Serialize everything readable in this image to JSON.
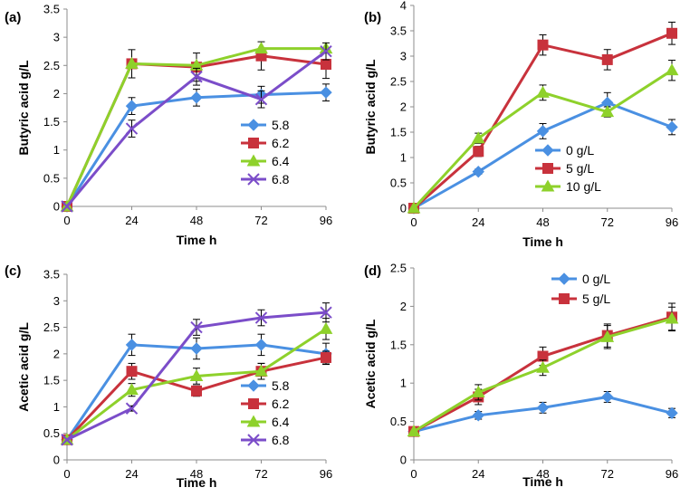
{
  "colors": {
    "blue": "#4A90E2",
    "red": "#C8323C",
    "green": "#8ED12B",
    "purple": "#7B4DC9",
    "axis": "#8c8c8c",
    "error": "#000000"
  },
  "chart_data": [
    {
      "panel": "(a)",
      "type": "line",
      "x": [
        0,
        24,
        48,
        72,
        96
      ],
      "xticks": [
        "0",
        "24",
        "48",
        "72",
        "96"
      ],
      "ylim": [
        0,
        3.5
      ],
      "yticks": [
        "0",
        "0.5",
        "1",
        "1.5",
        "2",
        "2.5",
        "3",
        "3.5"
      ],
      "xlabel": "Time h",
      "ylabel": "Butyric acid g/L",
      "legend_position": "bottom-right",
      "series": [
        {
          "name": "5.8",
          "marker": "diamond",
          "color": "blue",
          "values": [
            0,
            1.78,
            1.93,
            1.98,
            2.02
          ],
          "errors": [
            0,
            0.15,
            0.15,
            0.15,
            0.15
          ]
        },
        {
          "name": "6.2",
          "marker": "square",
          "color": "red",
          "values": [
            0,
            2.53,
            2.47,
            2.67,
            2.52
          ],
          "errors": [
            0,
            0.25,
            0.25,
            0.25,
            0.25
          ]
        },
        {
          "name": "6.4",
          "marker": "triangle",
          "color": "green",
          "values": [
            0,
            2.53,
            2.5,
            2.8,
            2.8
          ],
          "errors": [
            0,
            0.0,
            0.0,
            0.0,
            0.0
          ]
        },
        {
          "name": "6.8",
          "marker": "x",
          "color": "purple",
          "values": [
            0,
            1.38,
            2.3,
            1.9,
            2.75
          ],
          "errors": [
            0,
            0.15,
            0.15,
            0.15,
            0.15
          ]
        }
      ]
    },
    {
      "panel": "(b)",
      "type": "line",
      "x": [
        0,
        24,
        48,
        72,
        96
      ],
      "xticks": [
        "0",
        "24",
        "48",
        "72",
        "96"
      ],
      "ylim": [
        0,
        4
      ],
      "yticks": [
        "0",
        "0.5",
        "1",
        "1.5",
        "2",
        "2.5",
        "3",
        "3.5",
        "4"
      ],
      "xlabel": "Time h",
      "ylabel": "Butyric acid g/L",
      "legend_position": "bottom-right",
      "series": [
        {
          "name": "0 g/L",
          "marker": "diamond",
          "color": "blue",
          "values": [
            0,
            0.72,
            1.52,
            2.08,
            1.6
          ],
          "errors": [
            0,
            0.05,
            0.15,
            0.2,
            0.15
          ]
        },
        {
          "name": "5 g/L",
          "marker": "square",
          "color": "red",
          "values": [
            0,
            1.12,
            3.22,
            2.93,
            3.45
          ],
          "errors": [
            0,
            0.1,
            0.2,
            0.2,
            0.22
          ]
        },
        {
          "name": "10 g/L",
          "marker": "triangle",
          "color": "green",
          "values": [
            0,
            1.38,
            2.28,
            1.9,
            2.72
          ],
          "errors": [
            0,
            0.1,
            0.15,
            0.1,
            0.2
          ]
        }
      ]
    },
    {
      "panel": "(c)",
      "type": "line",
      "x": [
        0,
        24,
        48,
        72,
        96
      ],
      "xticks": [
        "0",
        "24",
        "48",
        "72",
        "96"
      ],
      "ylim": [
        0,
        3.5
      ],
      "yticks": [
        "0",
        "0.5",
        "1",
        "1.5",
        "2",
        "2.5",
        "3",
        "3.5"
      ],
      "xlabel": "Time h",
      "ylabel": "Acetic acid g/L",
      "legend_position": "bottom-right",
      "series": [
        {
          "name": "5.8",
          "marker": "diamond",
          "color": "blue",
          "values": [
            0.38,
            2.17,
            2.1,
            2.17,
            2.0
          ],
          "errors": [
            0,
            0.2,
            0.2,
            0.2,
            0.2
          ]
        },
        {
          "name": "6.2",
          "marker": "square",
          "color": "red",
          "values": [
            0.38,
            1.67,
            1.3,
            1.67,
            1.93
          ],
          "errors": [
            0,
            0.15,
            0.1,
            0.15,
            0.12
          ]
        },
        {
          "name": "6.4",
          "marker": "triangle",
          "color": "green",
          "values": [
            0.38,
            1.32,
            1.58,
            1.67,
            2.47
          ],
          "errors": [
            0,
            0.12,
            0.15,
            0.15,
            0.2
          ]
        },
        {
          "name": "6.8",
          "marker": "x",
          "color": "purple",
          "values": [
            0.38,
            0.97,
            2.5,
            2.68,
            2.78
          ],
          "errors": [
            0,
            0.05,
            0.15,
            0.15,
            0.18
          ]
        }
      ]
    },
    {
      "panel": "(d)",
      "type": "line",
      "x": [
        0,
        24,
        48,
        72,
        96
      ],
      "xticks": [
        "0",
        "24",
        "48",
        "72",
        "96"
      ],
      "ylim": [
        0,
        2.5
      ],
      "yticks": [
        "0",
        "0.5",
        "1",
        "1.5",
        "2",
        "2.5"
      ],
      "xlabel": "Time h",
      "ylabel": "Acetic acid g/L",
      "legend_position": "top-right",
      "series": [
        {
          "name": "0 g/L",
          "marker": "diamond",
          "color": "blue",
          "values": [
            0.37,
            0.58,
            0.68,
            0.82,
            0.61
          ],
          "errors": [
            0,
            0.05,
            0.07,
            0.07,
            0.06
          ]
        },
        {
          "name": "5 g/L",
          "marker": "square",
          "color": "red",
          "values": [
            0.37,
            0.82,
            1.35,
            1.62,
            1.86
          ],
          "errors": [
            0,
            0.1,
            0.12,
            0.15,
            0.18
          ]
        },
        {
          "name": "",
          "marker": "triangle",
          "color": "green",
          "values": [
            0.37,
            0.88,
            1.2,
            1.6,
            1.84
          ],
          "errors": [
            0,
            0.1,
            0.1,
            0.15,
            0.15
          ]
        }
      ]
    }
  ]
}
